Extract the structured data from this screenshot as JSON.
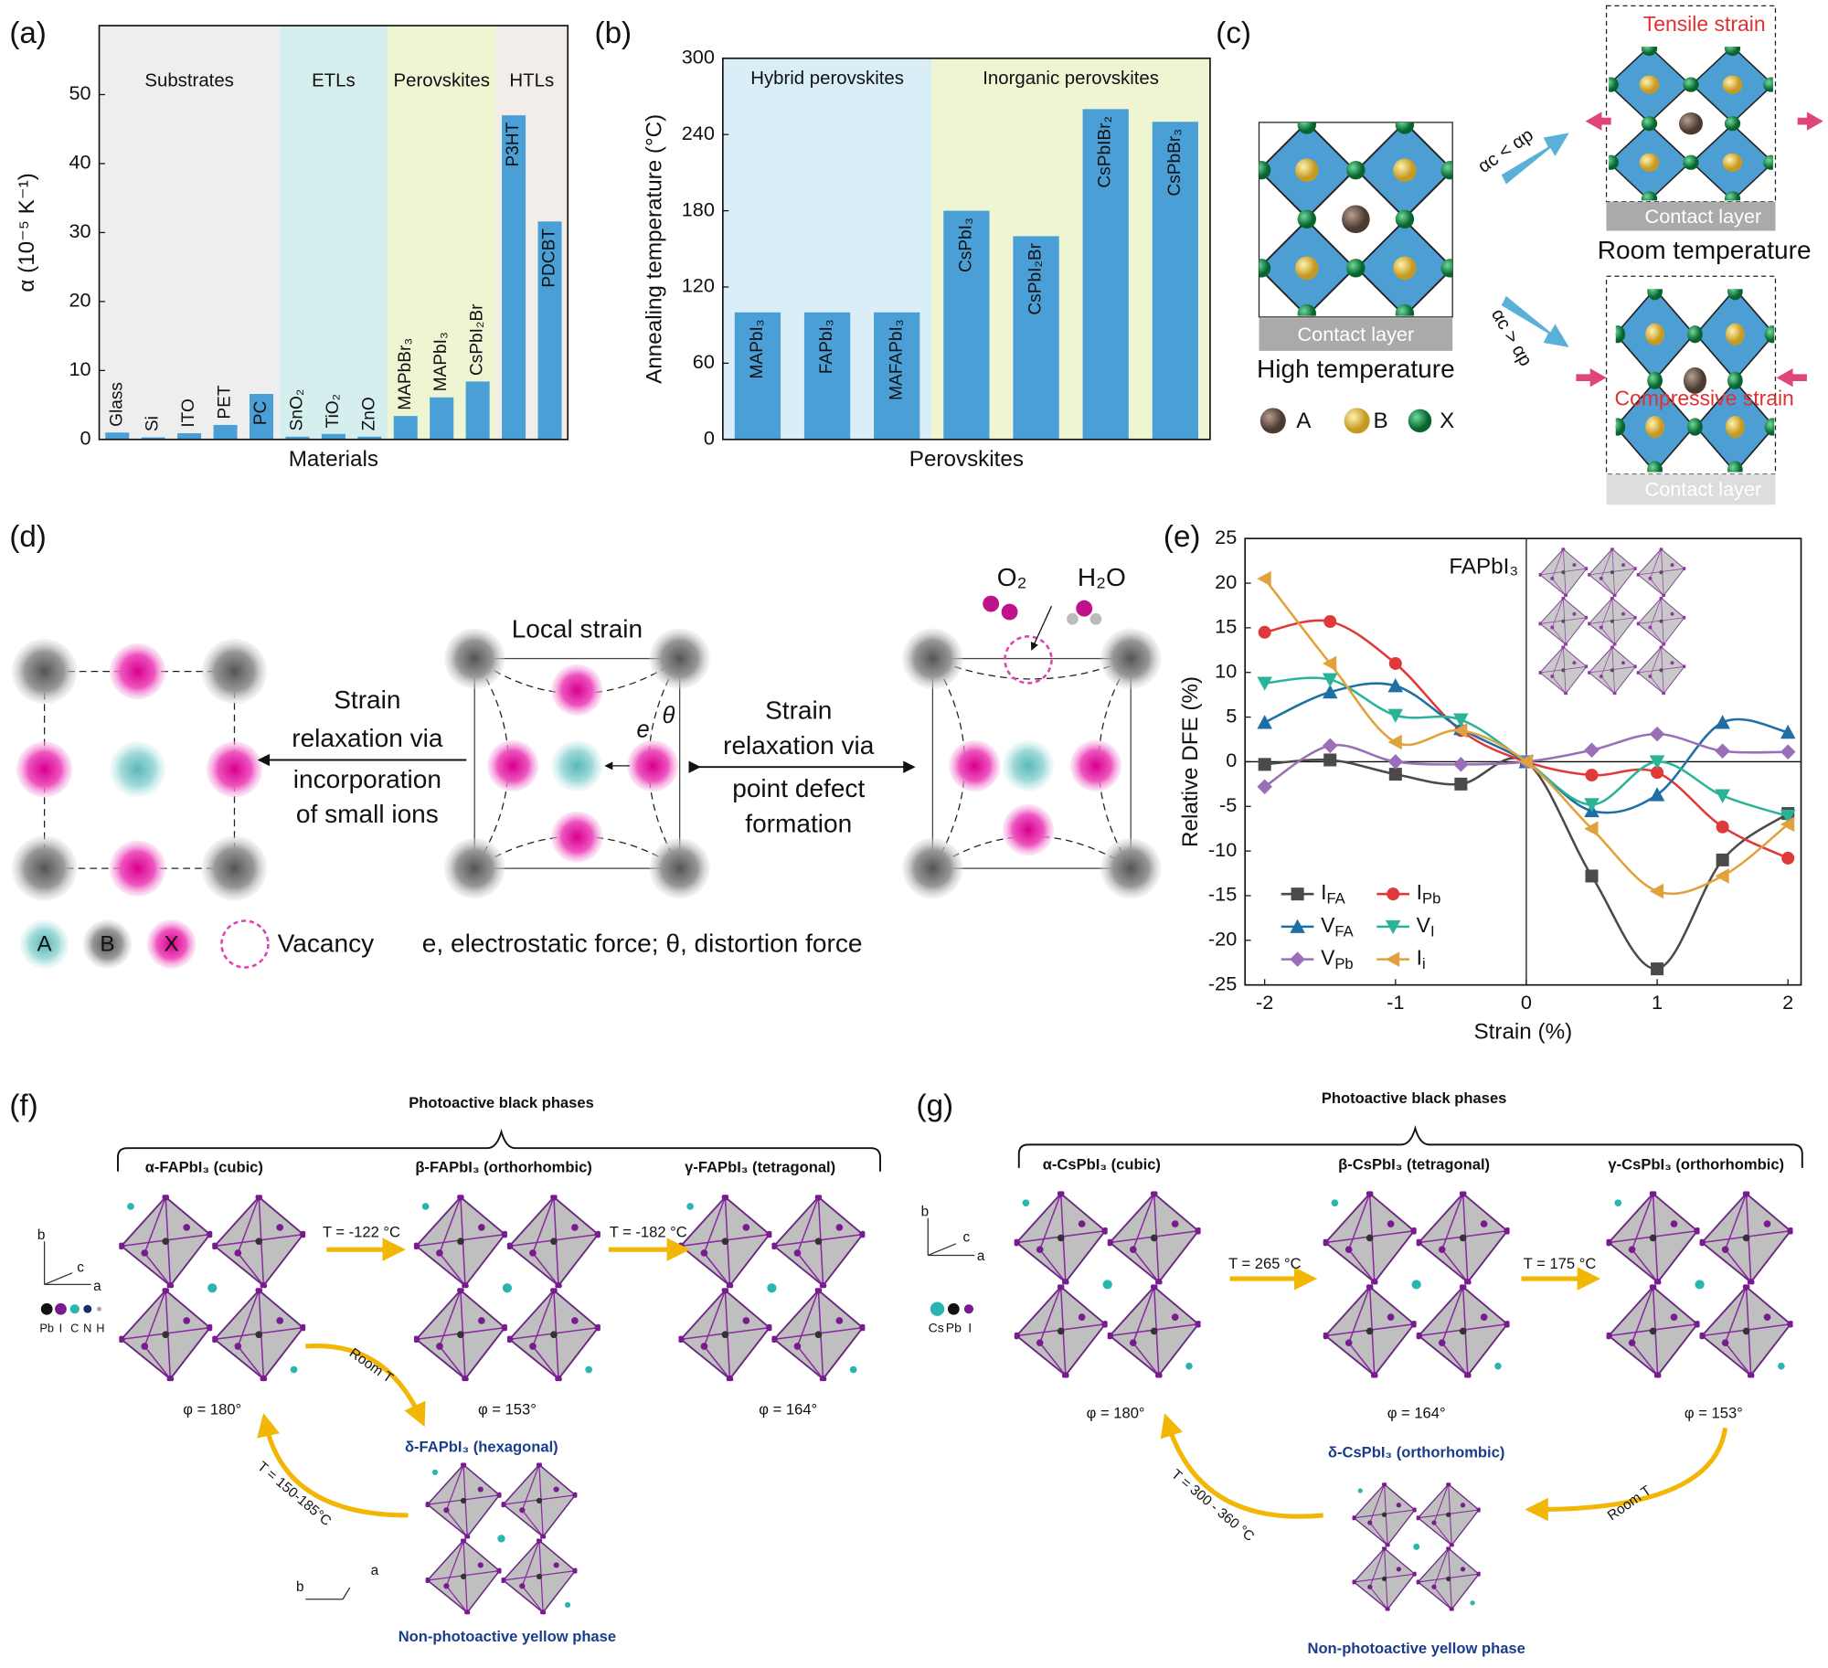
{
  "chart_data": [
    {
      "type": "bar",
      "label": "(a)",
      "ylabel": "α (10⁻⁵ K⁻¹)",
      "xlabel": "Materials",
      "color": "#4a9fd6",
      "ylim": [
        0,
        60
      ],
      "yticks": [
        0,
        10,
        20,
        30,
        40,
        50
      ],
      "groups": [
        {
          "name": "Substrates",
          "color": "#eeeeee",
          "categories": [
            "Glass",
            "Si",
            "ITO",
            "PET",
            "PC"
          ],
          "values": [
            1,
            0.3,
            0.9,
            2.1,
            6.6
          ]
        },
        {
          "name": "ETLs",
          "color": "#d5eeee",
          "categories": [
            "SnO₂",
            "TiO₂",
            "ZnO"
          ],
          "values": [
            0.4,
            0.8,
            0.4
          ]
        },
        {
          "name": "Perovskites",
          "color": "#edf5d2",
          "categories": [
            "MAPbBr₃",
            "MAPbI₃",
            "CsPbI₂Br"
          ],
          "values": [
            3.4,
            6.1,
            8.4
          ]
        },
        {
          "name": "HTLs",
          "color": "#f2ede8",
          "categories": [
            "P3HT",
            "PDCBT"
          ],
          "values": [
            47,
            31.6
          ]
        }
      ]
    },
    {
      "type": "bar",
      "label": "(b)",
      "ylabel": "Annealing temperature (°C)",
      "xlabel": "Perovskites",
      "color": "#4a9fd6",
      "ylim": [
        0,
        300
      ],
      "yticks": [
        0,
        60,
        120,
        180,
        240,
        300
      ],
      "groups": [
        {
          "name": "Hybrid perovskites",
          "color": "#daeef7",
          "categories": [
            "MAPbI₃",
            "FAPbI₃",
            "MAFAPbI₃"
          ],
          "values": [
            100,
            100,
            100
          ]
        },
        {
          "name": "Inorganic perovskites",
          "color": "#edf5d2",
          "categories": [
            "CsPbI₃",
            "CsPbI₂Br",
            "CsPbIBr₂",
            "CsPbBr₃"
          ],
          "values": [
            180,
            160,
            260,
            250
          ]
        }
      ]
    },
    {
      "type": "line",
      "label": "(e)",
      "annotation": "FAPbI₃",
      "xlabel": "Strain (%)",
      "ylabel": "Relative DFE (%)",
      "x": [
        -2,
        -1.5,
        -1,
        -0.5,
        0,
        0.5,
        1,
        1.5,
        2
      ],
      "xlim": [
        -2.15,
        2.1
      ],
      "xticks": [
        -2,
        -1,
        0,
        1,
        2
      ],
      "ylim": [
        -25,
        25
      ],
      "yticks": [
        -25,
        -20,
        -15,
        -10,
        -5,
        0,
        5,
        10,
        15,
        20,
        25
      ],
      "series": [
        {
          "name": "IFA",
          "color": "#4a4a4a",
          "marker": "square",
          "values": [
            -0.3,
            0.2,
            -1.4,
            -2.5,
            0,
            -12.8,
            -23.2,
            -11,
            -5.8
          ]
        },
        {
          "name": "IPb",
          "color": "#e0393a",
          "marker": "circle",
          "values": [
            14.5,
            15.7,
            11,
            3.5,
            0,
            -1.5,
            -1.2,
            -7.3,
            -10.8
          ]
        },
        {
          "name": "VFA",
          "color": "#1f6fa5",
          "marker": "triangle-up",
          "values": [
            4.4,
            7.8,
            8.5,
            3.7,
            0,
            -5.5,
            -3.7,
            4.4,
            3.3
          ]
        },
        {
          "name": "VI",
          "color": "#2bb39a",
          "marker": "triangle-down",
          "values": [
            8.8,
            9.2,
            5.2,
            4.7,
            0,
            -4.8,
            0,
            -3.8,
            -6.1
          ]
        },
        {
          "name": "VPb",
          "color": "#9b6fb8",
          "marker": "diamond",
          "values": [
            -2.8,
            1.8,
            0,
            -0.3,
            0,
            1.3,
            3.1,
            1.2,
            1.1
          ]
        },
        {
          "name": "Ii",
          "color": "#e0a23c",
          "marker": "triangle-left",
          "values": [
            20.5,
            11,
            2.2,
            3.5,
            0,
            -7.5,
            -14.5,
            -12.8,
            -7
          ]
        }
      ]
    }
  ],
  "panel_c": {
    "label": "(c)",
    "tensile": "Tensile strain",
    "compressive": "Compressive strain",
    "contact": [
      "Contact layer",
      "Contact layer",
      "Contact layer"
    ],
    "high_t": "High temperature",
    "room_t": "Room temperature",
    "ineq": [
      "αc < αp",
      "αc > αp"
    ],
    "legend": [
      "A",
      "B",
      "X"
    ]
  },
  "panel_d": {
    "label": "(d)",
    "local": "Local strain",
    "left_text": [
      "Strain",
      "relaxation via",
      "incorporation",
      "of small ions"
    ],
    "right_text": [
      "Strain",
      "relaxation via",
      "point defect",
      "formation"
    ],
    "e": "e",
    "theta": "θ",
    "o2": "O₂",
    "h2o": "H₂O",
    "legend": [
      "A",
      "B",
      "X",
      "Vacancy"
    ],
    "note": "e, electrostatic force; θ, distortion force"
  },
  "panel_f": {
    "label": "(f)",
    "header": "Photoactive black phases",
    "phases": [
      "α-FAPbI₃ (cubic)",
      "β-FAPbI₃ (orthorhombic)",
      "γ-FAPbI₃ (tetragonal)"
    ],
    "transitions": [
      "T = -122 °C",
      "T = -182 °C"
    ],
    "angles": [
      "φ = 180°",
      "φ = 153°",
      "φ = 164°"
    ],
    "delta": "δ-FAPbI₃ (hexagonal)",
    "yellow": "Non-photoactive yellow phase",
    "to_delta": "Room T",
    "from_delta": "T = 150-185°C",
    "axes": [
      "b",
      "c",
      "a"
    ],
    "delta_axes": [
      "b",
      "a"
    ],
    "legend": [
      "Pb",
      "I",
      "C",
      "N",
      "H"
    ]
  },
  "panel_g": {
    "label": "(g)",
    "header": "Photoactive black phases",
    "phases": [
      "α-CsPbI₃ (cubic)",
      "β-CsPbI₃ (tetragonal)",
      "γ-CsPbI₃ (orthorhombic)"
    ],
    "transitions": [
      "T = 265 °C",
      "T = 175 °C"
    ],
    "angles": [
      "φ = 180°",
      "φ = 164°",
      "φ = 153°"
    ],
    "delta": "δ-CsPbI₃ (orthorhombic)",
    "yellow": "Non-photoactive yellow phase",
    "to_delta": "Room T",
    "from_delta": "T = 300 - 360 °C",
    "axes": [
      "b",
      "c",
      "a"
    ],
    "legend": [
      "Cs",
      "Pb",
      "I"
    ]
  }
}
